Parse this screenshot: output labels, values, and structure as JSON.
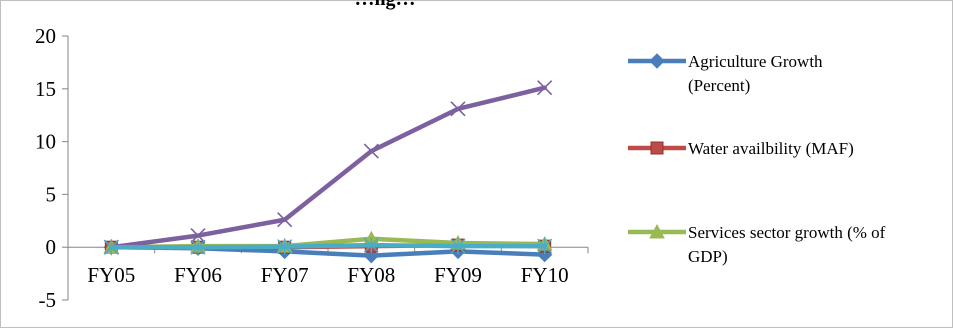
{
  "chart_data": {
    "type": "line",
    "title": "…ng…",
    "xlabel": "",
    "ylabel": "",
    "categories": [
      "FY05",
      "FY06",
      "FY07",
      "FY08",
      "FY09",
      "FY10"
    ],
    "ylim": [
      -5,
      20
    ],
    "yticks": [
      -5,
      0,
      5,
      10,
      15,
      20
    ],
    "grid": false,
    "legend_position": "right",
    "series": [
      {
        "name": "Agriculture Growth (Percent)",
        "name_lines": [
          "Agriculture Growth",
          "(Percent)"
        ],
        "color": "#4a7ebb",
        "marker": "diamond",
        "values": [
          0,
          -0.1,
          -0.4,
          -0.8,
          -0.4,
          -0.7
        ]
      },
      {
        "name": "Water availbility (MAF)",
        "name_lines": [
          "Water availbility (MAF)"
        ],
        "color": "#be4b48",
        "marker": "square",
        "values": [
          0,
          0,
          0,
          0.1,
          0.2,
          0.1
        ]
      },
      {
        "name": "Services sector growth (% of GDP)",
        "name_lines": [
          "Services sector growth (% of",
          "GDP)"
        ],
        "color": "#98b954",
        "marker": "triangle",
        "values": [
          0,
          0.1,
          0.1,
          0.8,
          0.4,
          0.3
        ]
      },
      {
        "name": "",
        "color": "#7d60a0",
        "marker": "x",
        "values": [
          0,
          1.1,
          2.6,
          9.1,
          13.1,
          15.1
        ]
      },
      {
        "name": "",
        "color": "#4bacc6",
        "marker": "star",
        "values": [
          0,
          0,
          0.05,
          0.2,
          0.1,
          0.1
        ]
      }
    ]
  }
}
